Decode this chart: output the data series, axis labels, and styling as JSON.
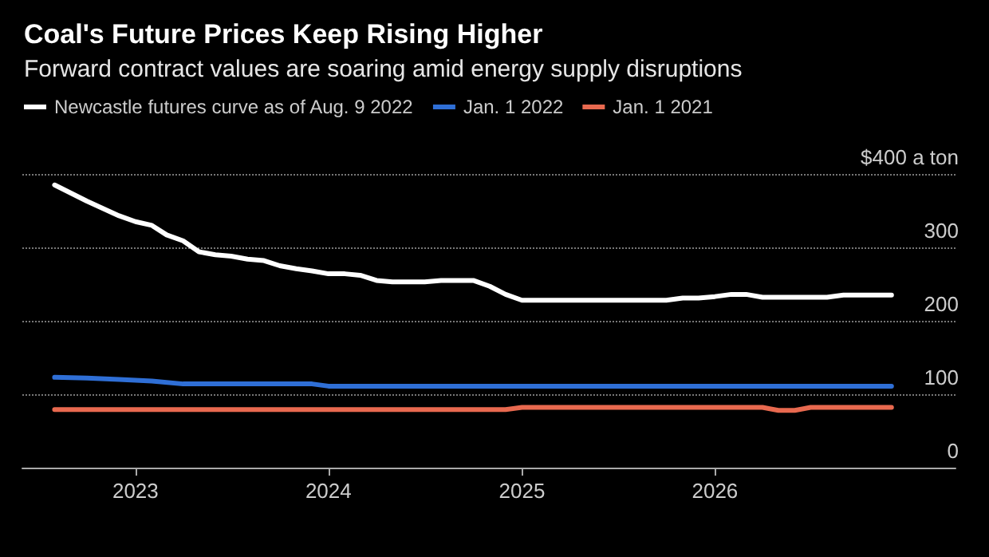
{
  "chart_data": {
    "type": "line",
    "title": "Coal's Future Prices Keep Rising Higher",
    "subtitle": "Forward contract values are soaring amid energy supply disruptions",
    "series": [
      {
        "name": "Newcastle futures curve as of Aug. 9 2022",
        "color": "#ffffff",
        "x": [
          "2022-08",
          "2022-10",
          "2022-12",
          "2023-01",
          "2023-02",
          "2023-03",
          "2023-04",
          "2023-05",
          "2023-06",
          "2023-07",
          "2023-08",
          "2023-09",
          "2023-10",
          "2023-11",
          "2023-12",
          "2024-01",
          "2024-02",
          "2024-03",
          "2024-04",
          "2024-05",
          "2024-07",
          "2024-08",
          "2024-10",
          "2024-11",
          "2024-12",
          "2025-01",
          "2025-10",
          "2025-11",
          "2025-12",
          "2026-01",
          "2026-02",
          "2026-03",
          "2026-04",
          "2026-08",
          "2026-09",
          "2026-12"
        ],
        "values": [
          385,
          363,
          343,
          335,
          330,
          317,
          309,
          294,
          290,
          288,
          284,
          282,
          275,
          271,
          268,
          264,
          264,
          262,
          255,
          253,
          253,
          255,
          255,
          247,
          236,
          228,
          228,
          231,
          231,
          233,
          236,
          236,
          232,
          232,
          235,
          235
        ]
      },
      {
        "name": "Jan. 1 2022",
        "color": "#2f6fd6",
        "x": [
          "2022-08",
          "2022-10",
          "2022-12",
          "2023-02",
          "2023-04",
          "2023-12",
          "2024-01",
          "2026-12"
        ],
        "values": [
          123,
          122,
          120,
          118,
          114,
          114,
          111,
          111
        ]
      },
      {
        "name": "Jan. 1 2021",
        "color": "#e8694f",
        "x": [
          "2022-08",
          "2024-12",
          "2025-01",
          "2026-04",
          "2026-05",
          "2026-06",
          "2026-07",
          "2026-12"
        ],
        "values": [
          79,
          79,
          82,
          82,
          78,
          78,
          82,
          82
        ]
      }
    ],
    "xlim": [
      "2022-06",
      "2027-04"
    ],
    "xticks": [
      "2023",
      "2024",
      "2025",
      "2026"
    ],
    "ylim": [
      0,
      400
    ],
    "yticks": [
      0,
      100,
      200,
      300,
      {
        "value": 400,
        "label": "$400 a ton"
      }
    ],
    "grid": "y",
    "legend": "top left",
    "marker": "none",
    "line_style": "solid"
  }
}
